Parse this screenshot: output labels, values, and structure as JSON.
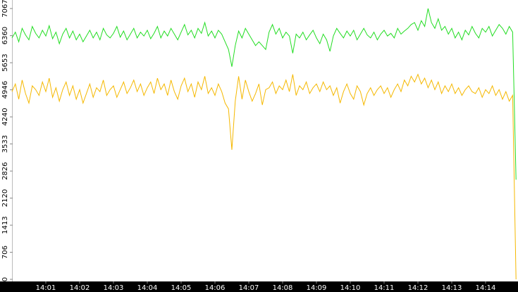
{
  "chart_data": {
    "type": "line",
    "categories": [
      null,
      null,
      null,
      null,
      null,
      null,
      null,
      null,
      null,
      null,
      "14:01",
      null,
      null,
      null,
      null,
      null,
      null,
      null,
      null,
      null,
      "14:02",
      null,
      null,
      null,
      null,
      null,
      null,
      null,
      null,
      null,
      "14:03",
      null,
      null,
      null,
      null,
      null,
      null,
      null,
      null,
      null,
      "14:04",
      null,
      null,
      null,
      null,
      null,
      null,
      null,
      null,
      null,
      "14:05",
      null,
      null,
      null,
      null,
      null,
      null,
      null,
      null,
      null,
      "14:06",
      null,
      null,
      null,
      null,
      null,
      null,
      null,
      null,
      null,
      "14:07",
      null,
      null,
      null,
      null,
      null,
      null,
      null,
      null,
      null,
      "14:08",
      null,
      null,
      null,
      null,
      null,
      null,
      null,
      null,
      null,
      "14:09",
      null,
      null,
      null,
      null,
      null,
      null,
      null,
      null,
      null,
      "14:10",
      null,
      null,
      null,
      null,
      null,
      null,
      null,
      null,
      null,
      "14:11",
      null,
      null,
      null,
      null,
      null,
      null,
      null,
      null,
      null,
      "14:12",
      null,
      null,
      null,
      null,
      null,
      null,
      null,
      null,
      null,
      "14:13",
      null,
      null,
      null,
      null,
      null,
      null,
      null,
      null,
      null,
      "14:14",
      null,
      null,
      null,
      null,
      null,
      null,
      null,
      null,
      null
    ],
    "series": [
      {
        "color": "#22dd22",
        "values": [
          6300,
          6450,
          6200,
          6550,
          6380,
          6250,
          6600,
          6420,
          6300,
          6500,
          6350,
          6620,
          6280,
          6450,
          6150,
          6400,
          6550,
          6300,
          6480,
          6250,
          6400,
          6200,
          6350,
          6500,
          6300,
          6450,
          6250,
          6550,
          6380,
          6300,
          6420,
          6600,
          6320,
          6480,
          6250,
          6400,
          6550,
          6300,
          6450,
          6350,
          6500,
          6280,
          6420,
          6600,
          6300,
          6480,
          6350,
          6550,
          6400,
          6250,
          6450,
          6650,
          6380,
          6500,
          6300,
          6550,
          6420,
          6700,
          6350,
          6480,
          6300,
          6500,
          6400,
          6200,
          6000,
          5550,
          6100,
          6480,
          6300,
          6550,
          6400,
          6250,
          6100,
          6200,
          6100,
          6000,
          6450,
          6650,
          6400,
          6550,
          6300,
          6450,
          6350,
          5900,
          6400,
          6300,
          6450,
          6250,
          6380,
          6500,
          6300,
          6150,
          6400,
          6250,
          5950,
          6350,
          6550,
          6420,
          6300,
          6480,
          6350,
          6500,
          6250,
          6400,
          6550,
          6380,
          6300,
          6450,
          6250,
          6400,
          6500,
          6350,
          6420,
          6300,
          6550,
          6400,
          6480,
          6550,
          6650,
          6700,
          6500,
          6750,
          6600,
          7067,
          6700,
          6550,
          6800,
          6500,
          6600,
          6400,
          6550,
          6300,
          6450,
          6250,
          6500,
          6380,
          6600,
          6420,
          6300,
          6550,
          6450,
          6600,
          6350,
          6500,
          6650,
          6550,
          6400,
          6600,
          6450,
          2600
        ]
      },
      {
        "color": "#f5b800",
        "values": [
          4900,
          5100,
          4700,
          5200,
          4850,
          4600,
          5050,
          4950,
          4800,
          5150,
          4900,
          5250,
          4750,
          5000,
          4650,
          4950,
          5150,
          4800,
          5050,
          4700,
          4950,
          4600,
          4850,
          5100,
          4750,
          5000,
          4900,
          5200,
          4800,
          4950,
          5050,
          4750,
          4950,
          5150,
          4850,
          5000,
          5200,
          4900,
          5100,
          4800,
          5000,
          5150,
          4850,
          5250,
          4950,
          5100,
          4800,
          5200,
          4900,
          4700,
          5050,
          5250,
          4900,
          5100,
          4750,
          5150,
          4950,
          5300,
          4850,
          5000,
          4800,
          5100,
          4900,
          4600,
          4450,
          3380,
          4650,
          5300,
          4700,
          5200,
          4900,
          4650,
          4850,
          5100,
          4550,
          4950,
          5000,
          5150,
          4850,
          5050,
          4950,
          5200,
          4900,
          5350,
          4800,
          5050,
          4950,
          5150,
          4850,
          5000,
          5100,
          4900,
          5150,
          4950,
          5050,
          4800,
          5000,
          4600,
          4900,
          5100,
          4850,
          4700,
          5050,
          4900,
          4550,
          4850,
          5000,
          4800,
          4950,
          5050,
          4850,
          5000,
          4750,
          4950,
          5100,
          4900,
          5200,
          5050,
          5300,
          5150,
          5350,
          5100,
          5250,
          5000,
          5200,
          4950,
          5150,
          4850,
          5050,
          4900,
          5100,
          4850,
          5000,
          4800,
          4950,
          5050,
          4900,
          4850,
          5000,
          4750,
          4950,
          4850,
          5050,
          4800,
          4950,
          4700,
          4900,
          4650,
          4800,
          0
        ]
      }
    ],
    "ylim": [
      -55,
      7290
    ],
    "yticks": [
      0,
      706,
      1413,
      2120,
      2826,
      3533,
      4240,
      4946,
      5653,
      6360,
      7067
    ]
  }
}
